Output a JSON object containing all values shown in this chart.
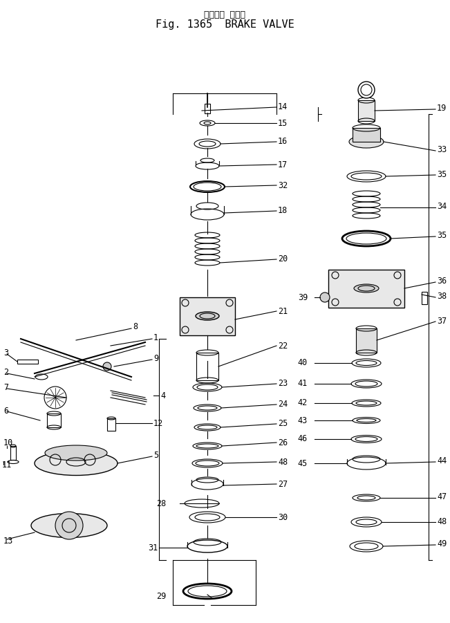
{
  "title_japanese": "ブレーキ バルブ",
  "title_english": "Fig. 1365  BRAKE VALVE",
  "bg_color": "#ffffff",
  "line_color": "#000000",
  "title_font_size": 11,
  "label_font_size": 8.5,
  "fig_width": 6.51,
  "fig_height": 9.01
}
